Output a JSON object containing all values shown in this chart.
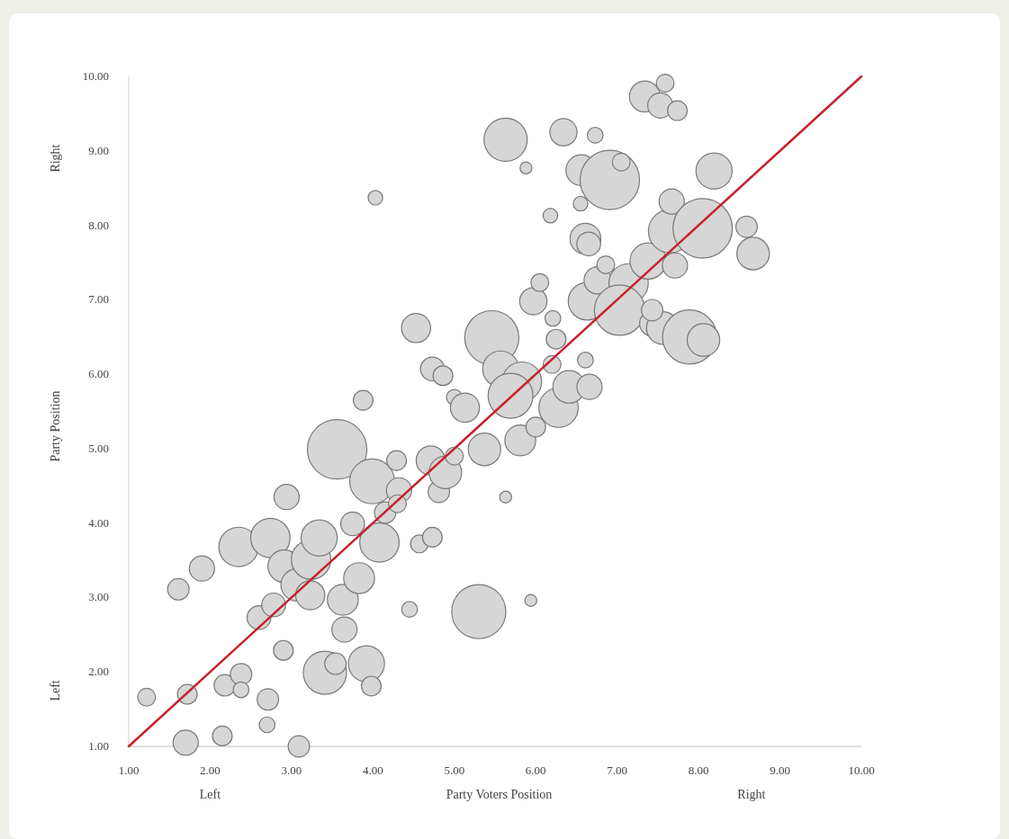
{
  "chart_data": {
    "type": "bubble",
    "xlabel": "Party Voters Position",
    "ylabel": "Party Position",
    "annotations": [
      "Left",
      "Right",
      "Left",
      "Right"
    ],
    "xlim": [
      1,
      10
    ],
    "ylim": [
      1,
      10
    ],
    "xticks": [
      {
        "value": 1,
        "label": "1.00"
      },
      {
        "value": 2,
        "label": "2.00"
      },
      {
        "value": 3,
        "label": "3.00"
      },
      {
        "value": 4,
        "label": "4.00"
      },
      {
        "value": 5,
        "label": "5.00"
      },
      {
        "value": 6,
        "label": "6.00"
      },
      {
        "value": 7,
        "label": "7.00"
      },
      {
        "value": 8,
        "label": "8.00"
      },
      {
        "value": 9,
        "label": "9.00"
      },
      {
        "value": 10,
        "label": "10.00"
      }
    ],
    "yticks": [
      {
        "value": 1,
        "label": "1.00"
      },
      {
        "value": 2,
        "label": "2.00"
      },
      {
        "value": 3,
        "label": "3.00"
      },
      {
        "value": 4,
        "label": "4.00"
      },
      {
        "value": 5,
        "label": "5.00"
      },
      {
        "value": 6,
        "label": "6.00"
      },
      {
        "value": 7,
        "label": "7.00"
      },
      {
        "value": 8,
        "label": "8.00"
      },
      {
        "value": 9,
        "label": "9.00"
      },
      {
        "value": 10,
        "label": "10.00"
      }
    ],
    "grid": false,
    "series": [
      {
        "color": "#d6d6d6",
        "x": [
          1.22,
          1.72,
          1.61,
          1.9,
          1.7,
          2.15,
          2.18,
          2.38,
          2.38,
          2.35,
          2.71,
          2.7,
          2.6,
          2.78,
          2.74,
          2.9,
          3.09,
          2.91,
          3.07,
          3.23,
          3.24,
          3.34,
          2.94,
          3.56,
          3.41,
          3.54,
          3.63,
          3.65,
          3.83,
          3.75,
          3.92,
          3.98,
          4.08,
          3.99,
          4.15,
          3.88,
          4.03,
          4.29,
          4.32,
          4.3,
          4.45,
          4.53,
          4.57,
          4.73,
          4.71,
          4.81,
          4.89,
          4.73,
          4.86,
          5.0,
          5.13,
          5.0,
          5.37,
          5.3,
          5.63,
          5.94,
          5.46,
          5.57,
          5.83,
          5.69,
          5.81,
          6.0,
          5.63,
          5.88,
          6.34,
          6.73,
          5.97,
          6.05,
          6.18,
          6.21,
          6.25,
          6.28,
          6.41,
          6.2,
          6.61,
          6.66,
          6.61,
          6.65,
          6.56,
          6.55,
          6.63,
          6.76,
          6.91,
          7.05,
          6.86,
          7.14,
          7.03,
          7.38,
          7.43,
          7.56,
          7.43,
          7.65,
          7.67,
          7.34,
          7.53,
          7.59,
          7.74,
          7.71,
          7.89,
          8.05,
          8.19,
          8.59,
          8.67,
          8.06
        ],
        "values": [
          1.66,
          1.7,
          3.11,
          3.39,
          1.05,
          1.14,
          1.82,
          1.97,
          1.76,
          3.68,
          1.63,
          1.29,
          2.73,
          2.9,
          3.8,
          2.29,
          1.0,
          3.42,
          3.17,
          3.03,
          3.51,
          3.8,
          4.35,
          4.99,
          1.99,
          2.11,
          2.97,
          2.57,
          3.26,
          3.99,
          2.11,
          1.81,
          3.74,
          4.56,
          4.14,
          5.65,
          8.37,
          4.84,
          4.44,
          4.26,
          2.84,
          6.62,
          3.72,
          3.81,
          4.84,
          4.42,
          4.68,
          6.07,
          5.98,
          5.69,
          5.55,
          4.9,
          4.99,
          2.81,
          4.35,
          2.96,
          6.49,
          6.07,
          5.9,
          5.71,
          5.11,
          5.29,
          9.15,
          8.77,
          9.25,
          9.21,
          6.98,
          7.23,
          8.13,
          6.75,
          6.47,
          5.55,
          5.83,
          6.13,
          6.19,
          5.83,
          7.82,
          7.75,
          8.74,
          8.29,
          6.98,
          7.26,
          8.61,
          8.85,
          7.47,
          7.22,
          6.86,
          7.52,
          6.68,
          6.62,
          6.86,
          7.92,
          8.32,
          9.73,
          9.61,
          9.91,
          9.54,
          7.46,
          6.5,
          7.96,
          8.73,
          7.98,
          7.62,
          6.46
        ],
        "sizes": [
          0.09,
          0.11,
          0.13,
          0.18,
          0.18,
          0.11,
          0.13,
          0.13,
          0.07,
          0.44,
          0.13,
          0.07,
          0.16,
          0.16,
          0.44,
          0.11,
          0.13,
          0.3,
          0.3,
          0.24,
          0.44,
          0.37,
          0.18,
          1,
          0.53,
          0.13,
          0.27,
          0.18,
          0.27,
          0.16,
          0.37,
          0.11,
          0.44,
          0.57,
          0.13,
          0.11,
          0.06,
          0.11,
          0.18,
          0.09,
          0.07,
          0.24,
          0.09,
          0.11,
          0.24,
          0.13,
          0.3,
          0.16,
          0.11,
          0.07,
          0.24,
          0.09,
          0.3,
          0.83,
          0.04,
          0.04,
          0.83,
          0.37,
          0.44,
          0.57,
          0.27,
          0.11,
          0.53,
          0.04,
          0.21,
          0.07,
          0.21,
          0.09,
          0.06,
          0.07,
          0.11,
          0.44,
          0.3,
          0.09,
          0.07,
          0.18,
          0.27,
          0.16,
          0.27,
          0.06,
          0.4,
          0.21,
          1,
          0.09,
          0.09,
          0.44,
          0.72,
          0.37,
          0.18,
          0.3,
          0.13,
          0.53,
          0.18,
          0.27,
          0.18,
          0.09,
          0.11,
          0.18,
          0.83,
          1,
          0.37,
          0.13,
          0.3,
          0.3
        ]
      },
      {
        "type": "line",
        "color": "#c8202b",
        "x": [
          1,
          10
        ],
        "values": [
          1,
          10
        ]
      }
    ]
  }
}
